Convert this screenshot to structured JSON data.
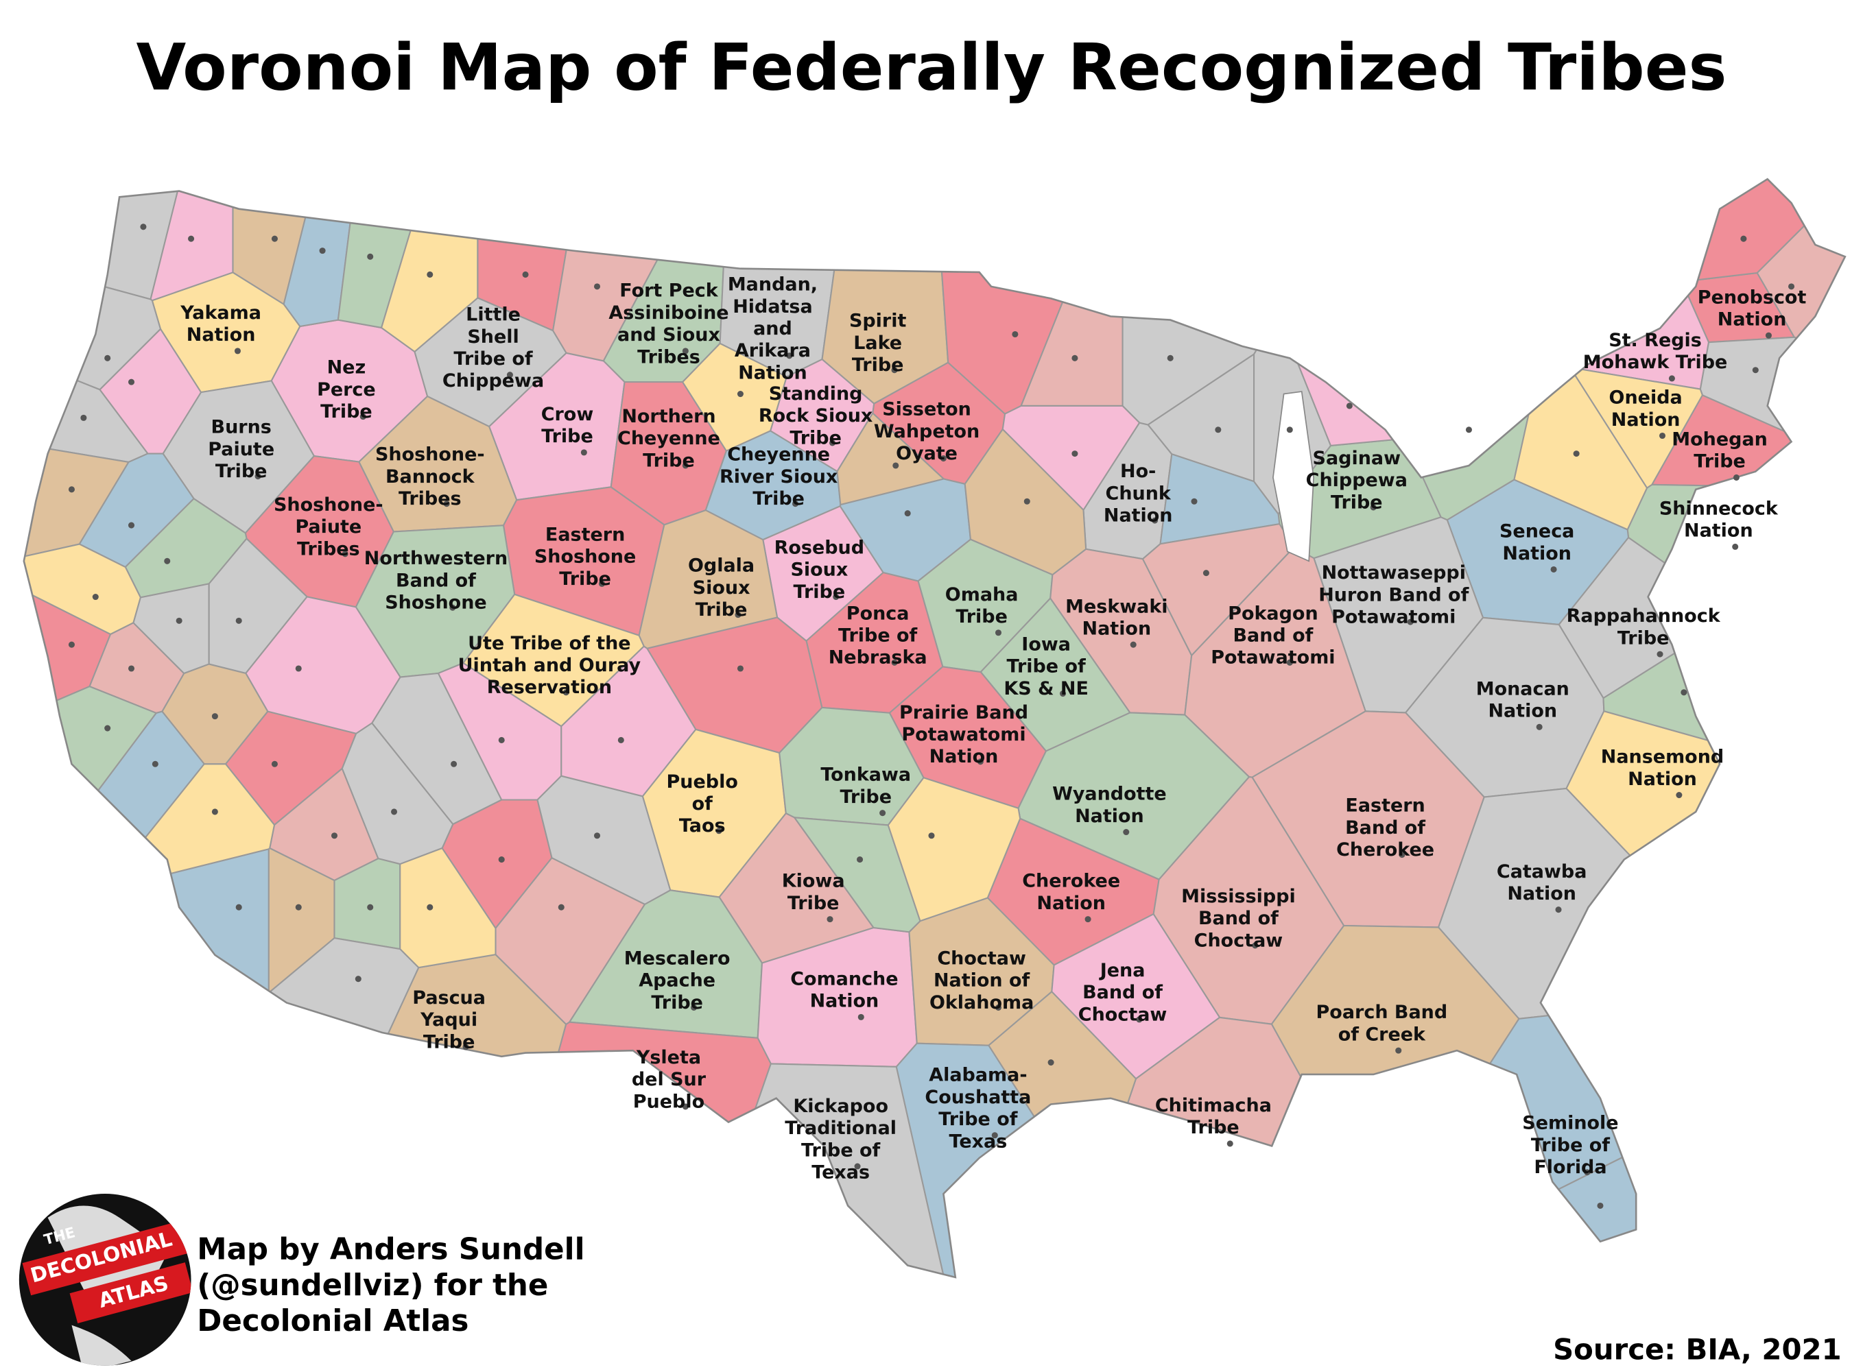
{
  "title": "Voronoi Map of Federally Recognized Tribes",
  "labels": [
    [
      "Yakama",
      "Nation"
    ],
    [
      "Nez",
      "Perce",
      "Tribe"
    ],
    [
      "Little",
      "Shell",
      "Tribe of",
      "Chippewa"
    ],
    [
      "Fort Peck",
      "Assiniboine",
      "and Sioux",
      "Tribes"
    ],
    [
      "Mandan,",
      "Hidatsa",
      "and",
      "Arikara",
      "Nation"
    ],
    [
      "Spirit",
      "Lake",
      "Tribe"
    ],
    [
      "Penobscot",
      "Nation"
    ],
    [
      "St. Regis",
      "Mohawk Tribe"
    ],
    [
      "Burns",
      "Paiute",
      "Tribe"
    ],
    [
      "Crow",
      "Tribe"
    ],
    [
      "Northern",
      "Cheyenne",
      "Tribe"
    ],
    [
      "Standing",
      "Rock Sioux",
      "Tribe"
    ],
    [
      "Sisseton",
      "Wahpeton",
      "Oyate"
    ],
    [
      "Oneida",
      "Nation"
    ],
    [
      "Mohegan",
      "Tribe"
    ],
    [
      "Shoshone-",
      "Bannock",
      "Tribes"
    ],
    [
      "Cheyenne",
      "River Sioux",
      "Tribe"
    ],
    [
      "Saginaw",
      "Chippewa",
      "Tribe"
    ],
    [
      "Ho-",
      "Chunk",
      "Nation"
    ],
    [
      "Shoshone-",
      "Paiute",
      "Tribes"
    ],
    [
      "Eastern",
      "Shoshone",
      "Tribe"
    ],
    [
      "Shinnecock",
      "Nation"
    ],
    [
      "Seneca",
      "Nation"
    ],
    [
      "Northwestern",
      "Band of",
      "Shoshone"
    ],
    [
      "Rosebud",
      "Sioux",
      "Tribe"
    ],
    [
      "Oglala",
      "Sioux",
      "Tribe"
    ],
    [
      "Omaha",
      "Tribe"
    ],
    [
      "Meskwaki",
      "Nation"
    ],
    [
      "Nottawaseppi",
      "Huron Band of",
      "Potawatomi"
    ],
    [
      "Pokagon",
      "Band of",
      "Potawatomi"
    ],
    [
      "Rappahannock",
      "Tribe"
    ],
    [
      "Ponca",
      "Tribe of",
      "Nebraska"
    ],
    [
      "Ute Tribe of the",
      "Uintah and Ouray",
      "Reservation"
    ],
    [
      "Iowa",
      "Tribe of",
      "KS & NE"
    ],
    [
      "Monacan",
      "Nation"
    ],
    [
      "Prairie Band",
      "Potawatomi",
      "Nation"
    ],
    [
      "Nansemond",
      "Nation"
    ],
    [
      "Pueblo",
      "of",
      "Taos"
    ],
    [
      "Tonkawa",
      "Tribe"
    ],
    [
      "Wyandotte",
      "Nation"
    ],
    [
      "Eastern",
      "Band of",
      "Cherokee"
    ],
    [
      "Kiowa",
      "Tribe"
    ],
    [
      "Cherokee",
      "Nation"
    ],
    [
      "Catawba",
      "Nation"
    ],
    [
      "Mississippi",
      "Band of",
      "Choctaw"
    ],
    [
      "Mescalero",
      "Apache",
      "Tribe"
    ],
    [
      "Comanche",
      "Nation"
    ],
    [
      "Choctaw",
      "Nation of",
      "Oklahoma"
    ],
    [
      "Jena",
      "Band of",
      "Choctaw"
    ],
    [
      "Pascua",
      "Yaqui",
      "Tribe"
    ],
    [
      "Poarch Band",
      "of Creek"
    ],
    [
      "Ysleta",
      "del Sur",
      "Pueblo"
    ],
    [
      "Kickapoo",
      "Traditional",
      "Tribe of",
      "Texas"
    ],
    [
      "Alabama-",
      "Coushatta",
      "Tribe of",
      "Texas"
    ],
    [
      "Chitimacha",
      "Tribe"
    ],
    [
      "Seminole",
      "Tribe of",
      "Florida"
    ]
  ],
  "credit": [
    "Map by Anders Sundell",
    "(@sundellviz) for the",
    "Decolonial Atlas"
  ],
  "source": "Source: BIA, 2021",
  "logo": [
    "THE",
    "DECOLONIAL",
    "ATLAS"
  ]
}
